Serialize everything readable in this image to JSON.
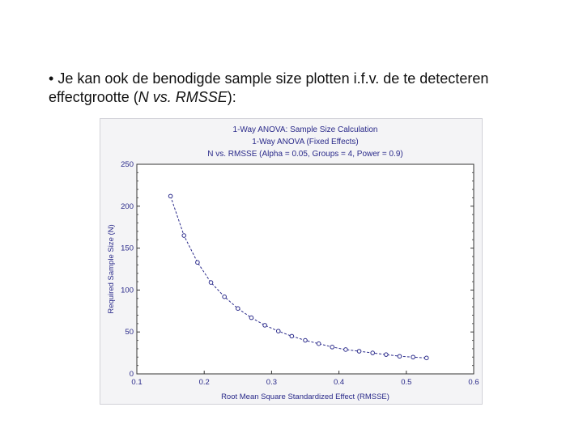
{
  "slide": {
    "bullet": "•",
    "text_main": "Je kan ook de benodigde sample size plotten i.f.v. de te detecteren effectgrootte (",
    "text_italic": "N vs. RMSSE",
    "text_end": "):"
  },
  "chart_data": {
    "type": "line",
    "title": "1-Way ANOVA: Sample Size Calculation",
    "subtitle": "1-Way ANOVA (Fixed Effects)",
    "subtitle2": "N vs. RMSSE (Alpha = 0.05, Groups = 4, Power = 0.9)",
    "xlabel": "Root Mean Square Standardized Effect (RMSSE)",
    "ylabel": "Required Sample Size (N)",
    "xlim": [
      0.1,
      0.6
    ],
    "ylim": [
      0,
      250
    ],
    "x_ticks": [
      "0.1",
      "0.2",
      "0.3",
      "0.4",
      "0.5",
      "0.6"
    ],
    "y_ticks": [
      "0",
      "50",
      "100",
      "150",
      "200",
      "250"
    ],
    "grid": false,
    "colors": {
      "series": "#2d2d8c",
      "text": "#2a2a8a",
      "axis": "#333333",
      "background": "#f4f4f6"
    },
    "series": [
      {
        "x": [
          0.15,
          0.17,
          0.19,
          0.21,
          0.23,
          0.25,
          0.27,
          0.29,
          0.31,
          0.33,
          0.35,
          0.37,
          0.39,
          0.41,
          0.43,
          0.45,
          0.47,
          0.49,
          0.51,
          0.53
        ],
        "y": [
          212,
          165,
          133,
          109,
          92,
          78,
          67,
          58,
          51,
          45,
          40,
          36,
          32,
          29,
          27,
          25,
          23,
          21,
          20,
          19
        ]
      }
    ]
  }
}
